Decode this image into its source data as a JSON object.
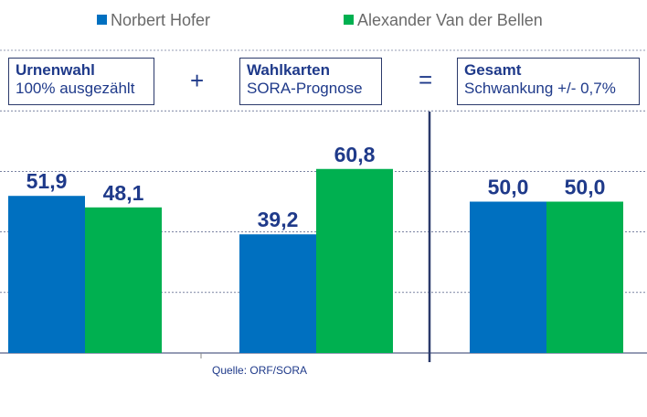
{
  "legend": {
    "series_a": "Norbert Hofer",
    "series_b": "Alexander Van der Bellen"
  },
  "boxes": [
    {
      "title": "Urnenwahl",
      "subtitle": "100% ausgezählt"
    },
    {
      "title": "Wahlkarten",
      "subtitle": "SORA-Prognose"
    },
    {
      "title": "Gesamt",
      "subtitle": "Schwankung +/- 0,7%"
    }
  ],
  "operators": {
    "plus": "+",
    "equals": "="
  },
  "source": "Quelle: ORF/SORA",
  "colors": {
    "hofer": "#0070c0",
    "vdb": "#00b050",
    "text": "#1f3a8a",
    "grid": "#2b3a6b"
  },
  "chart_data": {
    "type": "bar",
    "categories": [
      "Urnenwahl",
      "Wahlkarten",
      "Gesamt"
    ],
    "series": [
      {
        "name": "Norbert Hofer",
        "values": [
          51.9,
          39.2,
          50.0
        ],
        "labels": [
          "51,9",
          "39,2",
          "50,0"
        ]
      },
      {
        "name": "Alexander Van der Bellen",
        "values": [
          48.1,
          60.8,
          50.0
        ],
        "labels": [
          "48,1",
          "60,8",
          "50,0"
        ]
      }
    ],
    "ylim": [
      0,
      100
    ],
    "grid": true,
    "legend_position": "top"
  }
}
